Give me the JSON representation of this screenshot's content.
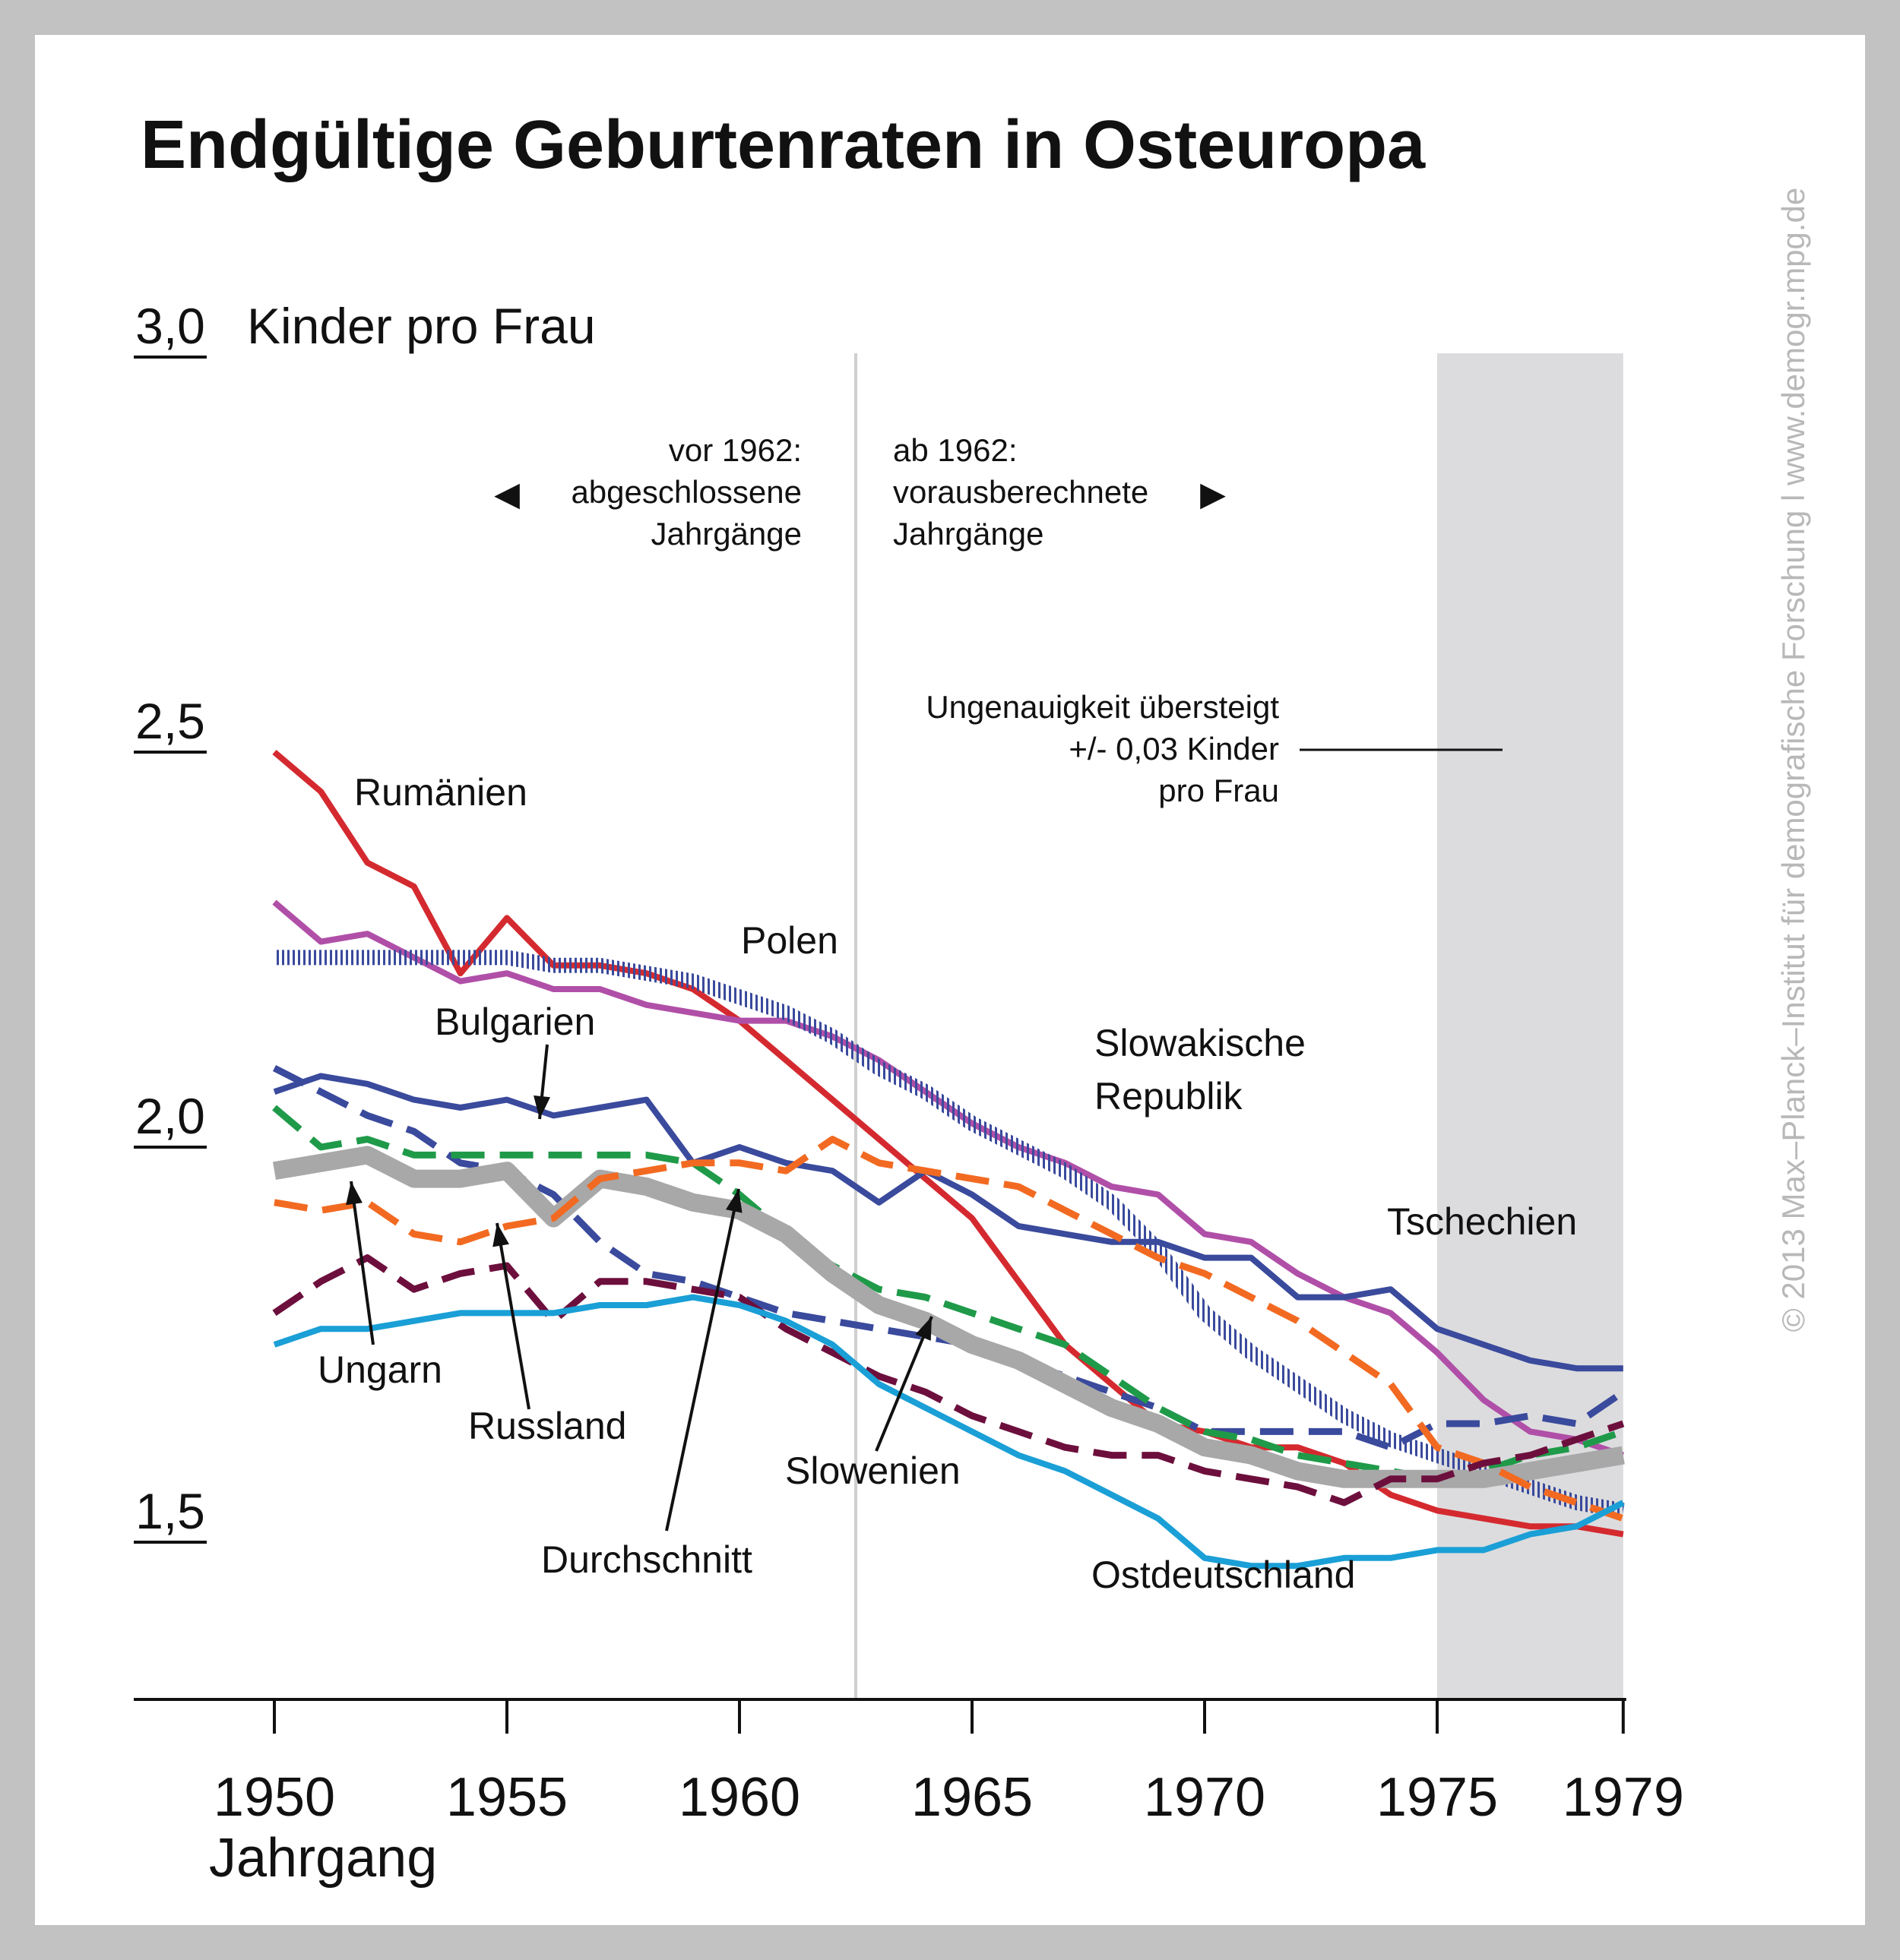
{
  "title": "Endgültige Geburtenraten in Osteuropa",
  "credit": "© 2013 Max–Planck–Institut für demografische Forschung l www.demogr.mpg.de",
  "annotations": {
    "left_note": [
      "vor 1962:",
      "abgeschlossene",
      "Jahrgänge"
    ],
    "right_note": [
      "ab 1962:",
      "vorausberechnete",
      "Jahrgänge"
    ],
    "left_arrow": "◀",
    "right_arrow": "▶",
    "uncertainty_note": [
      "Ungenauigkeit übersteigt",
      "+/- 0,03 Kinder",
      "pro Frau"
    ]
  },
  "chart_data": {
    "type": "line",
    "ylabel": "Kinder pro Frau",
    "xlabel": "Jahrgang",
    "xlim": [
      1947,
      1979
    ],
    "ylim": [
      1.25,
      3.0
    ],
    "x_ticks": [
      1950,
      1955,
      1960,
      1965,
      1970,
      1975,
      1979
    ],
    "y_ticks": [
      {
        "value": 1.5,
        "label": "1,5"
      },
      {
        "value": 2.0,
        "label": "2,0"
      },
      {
        "value": 2.5,
        "label": "2,5"
      },
      {
        "value": 3.0,
        "label": "3,0"
      }
    ],
    "divider_year": 1962.5,
    "shaded_range": [
      1975,
      1979
    ],
    "x": [
      1950,
      1951,
      1952,
      1953,
      1954,
      1955,
      1956,
      1957,
      1958,
      1959,
      1960,
      1961,
      1962,
      1963,
      1964,
      1965,
      1966,
      1967,
      1968,
      1969,
      1970,
      1971,
      1972,
      1973,
      1974,
      1975,
      1976,
      1977,
      1978,
      1979
    ],
    "series": [
      {
        "name": "Rumänien",
        "color": "#d42a2f",
        "style": "solid",
        "values": [
          2.5,
          2.45,
          2.36,
          2.33,
          2.22,
          2.29,
          2.23,
          2.23,
          2.22,
          2.2,
          2.16,
          2.11,
          2.06,
          2.01,
          1.96,
          1.91,
          1.83,
          1.75,
          1.7,
          1.65,
          1.64,
          1.62,
          1.62,
          1.6,
          1.56,
          1.54,
          1.53,
          1.52,
          1.52,
          1.51
        ]
      },
      {
        "name": "Slowakische Republik",
        "color": "#b04fa8",
        "style": "solid",
        "values": [
          2.31,
          2.26,
          2.27,
          2.24,
          2.21,
          2.22,
          2.2,
          2.2,
          2.18,
          2.17,
          2.16,
          2.16,
          2.14,
          2.11,
          2.07,
          2.03,
          2.0,
          1.98,
          1.95,
          1.94,
          1.89,
          1.88,
          1.84,
          1.81,
          1.79,
          1.74,
          1.68,
          1.64,
          1.63,
          1.61
        ]
      },
      {
        "name": "Polen",
        "color": "#3a4a9c",
        "style": "hatched",
        "values": [
          2.24,
          2.24,
          2.24,
          2.24,
          2.24,
          2.24,
          2.23,
          2.23,
          2.22,
          2.21,
          2.19,
          2.17,
          2.14,
          2.1,
          2.07,
          2.03,
          2.0,
          1.97,
          1.93,
          1.87,
          1.79,
          1.74,
          1.7,
          1.66,
          1.63,
          1.61,
          1.59,
          1.57,
          1.55,
          1.54
        ]
      },
      {
        "name": "Tschechien",
        "color": "#3a4a9c",
        "style": "solid",
        "values": [
          2.07,
          2.09,
          2.08,
          2.06,
          2.05,
          2.06,
          2.04,
          2.05,
          2.06,
          1.98,
          2.0,
          1.98,
          1.97,
          1.93,
          1.97,
          1.94,
          1.9,
          1.89,
          1.88,
          1.88,
          1.86,
          1.86,
          1.81,
          1.81,
          1.82,
          1.77,
          1.75,
          1.73,
          1.72,
          1.72
        ]
      },
      {
        "name": "Slowenien",
        "color": "#3a4a9c",
        "style": "dashed",
        "values": [
          2.1,
          2.07,
          2.04,
          2.02,
          1.98,
          1.97,
          1.94,
          1.88,
          1.84,
          1.83,
          1.81,
          1.79,
          1.78,
          1.77,
          1.76,
          1.75,
          1.73,
          1.71,
          1.69,
          1.67,
          1.64,
          1.64,
          1.64,
          1.64,
          1.62,
          1.65,
          1.65,
          1.66,
          1.65,
          1.69
        ]
      },
      {
        "name": "Bulgarien",
        "color": "#1f9a49",
        "style": "dashed",
        "values": [
          2.05,
          2.0,
          2.01,
          1.99,
          1.99,
          1.99,
          1.99,
          1.99,
          1.99,
          1.98,
          1.94,
          1.89,
          1.85,
          1.82,
          1.81,
          1.79,
          1.77,
          1.75,
          1.71,
          1.67,
          1.64,
          1.63,
          1.61,
          1.6,
          1.59,
          1.58,
          1.59,
          1.61,
          1.62,
          1.64
        ]
      },
      {
        "name": "Durchschnitt",
        "color": "#a8a8a8",
        "style": "thick",
        "values": [
          1.97,
          1.98,
          1.99,
          1.96,
          1.96,
          1.97,
          1.91,
          1.96,
          1.95,
          1.93,
          1.92,
          1.89,
          1.84,
          1.8,
          1.78,
          1.75,
          1.73,
          1.7,
          1.67,
          1.65,
          1.62,
          1.61,
          1.59,
          1.58,
          1.58,
          1.58,
          1.58,
          1.59,
          1.6,
          1.61
        ]
      },
      {
        "name": "Ungarn",
        "color": "#f26a21",
        "style": "dashed",
        "values": [
          1.93,
          1.92,
          1.93,
          1.89,
          1.88,
          1.9,
          1.91,
          1.96,
          1.97,
          1.98,
          1.98,
          1.97,
          2.01,
          1.98,
          1.97,
          1.96,
          1.95,
          1.92,
          1.89,
          1.86,
          1.84,
          1.81,
          1.78,
          1.74,
          1.7,
          1.62,
          1.6,
          1.57,
          1.55,
          1.53
        ]
      },
      {
        "name": "Russland",
        "color": "#6d0f3d",
        "style": "dashed",
        "values": [
          1.79,
          1.83,
          1.86,
          1.82,
          1.84,
          1.85,
          1.78,
          1.83,
          1.83,
          1.82,
          1.81,
          1.77,
          1.74,
          1.71,
          1.69,
          1.66,
          1.64,
          1.62,
          1.61,
          1.61,
          1.59,
          1.58,
          1.57,
          1.55,
          1.58,
          1.58,
          1.6,
          1.61,
          1.63,
          1.65
        ]
      },
      {
        "name": "Ostdeutschland",
        "color": "#1a9fd6",
        "style": "solid",
        "values": [
          1.75,
          1.77,
          1.77,
          1.78,
          1.79,
          1.79,
          1.79,
          1.8,
          1.8,
          1.81,
          1.8,
          1.78,
          1.75,
          1.7,
          1.67,
          1.64,
          1.61,
          1.59,
          1.56,
          1.53,
          1.48,
          1.47,
          1.47,
          1.48,
          1.48,
          1.49,
          1.49,
          1.51,
          1.52,
          1.55
        ]
      }
    ],
    "series_labels": [
      {
        "text": "Rumänien",
        "series": "Rumänien"
      },
      {
        "text": "Polen",
        "series": "Polen"
      },
      {
        "text": "Bulgarien",
        "series": "Bulgarien"
      },
      {
        "text": "Slowakische",
        "series": "Slowakische Republik"
      },
      {
        "text": "Republik",
        "series": "Slowakische Republik"
      },
      {
        "text": "Tschechien",
        "series": "Tschechien"
      },
      {
        "text": "Ungarn",
        "series": "Ungarn"
      },
      {
        "text": "Russland",
        "series": "Russland"
      },
      {
        "text": "Durchschnitt",
        "series": "Durchschnitt"
      },
      {
        "text": "Slowenien",
        "series": "Slowenien"
      },
      {
        "text": "Ostdeutschland",
        "series": "Ostdeutschland"
      }
    ]
  }
}
